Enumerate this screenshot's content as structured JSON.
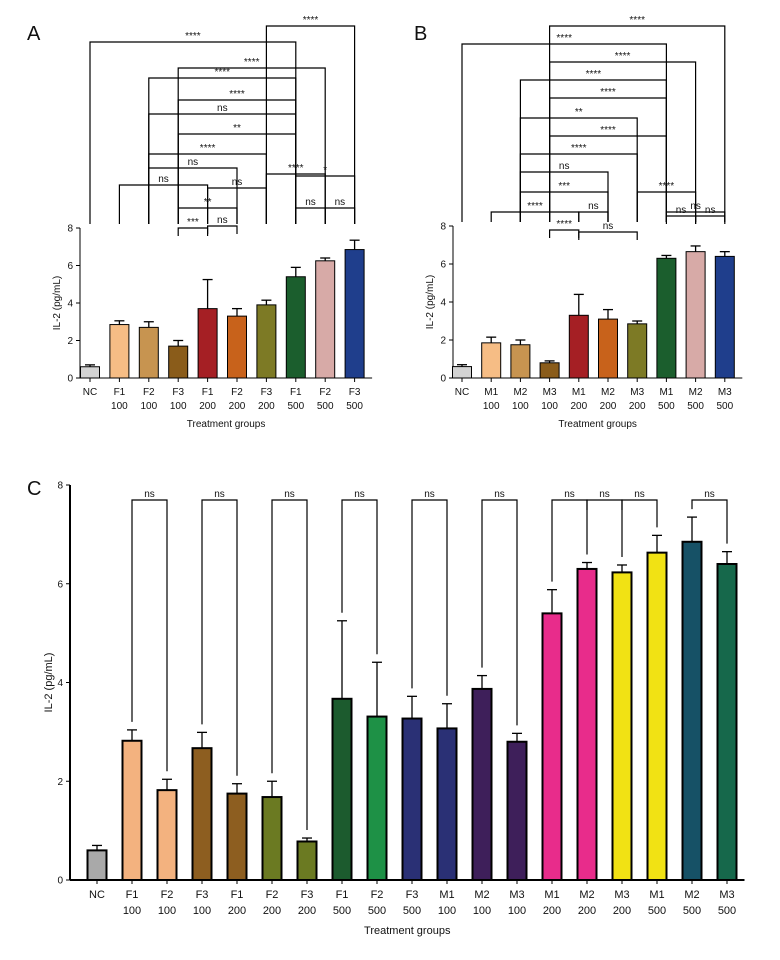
{
  "chart_data": [
    {
      "panel_label": "A",
      "type": "bar",
      "ylabel": "IL-2 (pg/mL)",
      "xlabel": "Treatment groups",
      "ylim": [
        0,
        8
      ],
      "yticks": [
        0,
        2,
        4,
        6,
        8
      ],
      "categories": [
        [
          "NC"
        ],
        [
          "F1",
          "100"
        ],
        [
          "F2",
          "100"
        ],
        [
          "F3",
          "100"
        ],
        [
          "F1",
          "200"
        ],
        [
          "F2",
          "200"
        ],
        [
          "F3",
          "200"
        ],
        [
          "F1",
          "500"
        ],
        [
          "F2",
          "500"
        ],
        [
          "F3",
          "500"
        ]
      ],
      "values": [
        0.6,
        2.85,
        2.7,
        1.7,
        3.7,
        3.3,
        3.9,
        5.4,
        6.25,
        6.85
      ],
      "errors": [
        0.1,
        0.2,
        0.3,
        0.3,
        1.55,
        0.4,
        0.25,
        0.5,
        0.15,
        0.5
      ],
      "colors": [
        "#d3d3d3",
        "#f6bd85",
        "#c79450",
        "#8a5c1a",
        "#a51f24",
        "#c8621b",
        "#7d7a25",
        "#1b5e2d",
        "#d7aaa7",
        "#1f3e8c"
      ],
      "comparisons": [
        {
          "from": 6,
          "to": 9,
          "label": "****"
        },
        {
          "from": 0,
          "to": 7,
          "label": "****"
        },
        {
          "from": 3,
          "to": 8,
          "label": "****"
        },
        {
          "from": 2,
          "to": 7,
          "label": "****"
        },
        {
          "from": 3,
          "to": 7,
          "label": "****"
        },
        {
          "from": 2,
          "to": 7,
          "label": "ns"
        },
        {
          "from": 3,
          "to": 7,
          "label": "**"
        },
        {
          "from": 2,
          "to": 6,
          "label": "****"
        },
        {
          "from": 2,
          "to": 5,
          "label": "ns"
        },
        {
          "from": 6,
          "to": 8,
          "label": "****"
        },
        {
          "from": 1,
          "to": 4,
          "label": "ns"
        },
        {
          "from": 4,
          "to": 6,
          "label": "ns"
        },
        {
          "from": 7,
          "to": 9,
          "label": "*"
        },
        {
          "from": 3,
          "to": 5,
          "label": "**"
        },
        {
          "from": 3,
          "to": 4,
          "label": "***"
        },
        {
          "from": 4,
          "to": 5,
          "label": "ns"
        },
        {
          "from": 7,
          "to": 8,
          "label": "ns"
        },
        {
          "from": 8,
          "to": 9,
          "label": "ns"
        }
      ]
    },
    {
      "panel_label": "B",
      "type": "bar",
      "ylabel": "IL-2 (pg/mL)",
      "xlabel": "Treatment groups",
      "ylim": [
        0,
        8
      ],
      "yticks": [
        0,
        2,
        4,
        6,
        8
      ],
      "categories": [
        [
          "NC"
        ],
        [
          "M1",
          "100"
        ],
        [
          "M2",
          "100"
        ],
        [
          "M3",
          "100"
        ],
        [
          "M1",
          "200"
        ],
        [
          "M2",
          "200"
        ],
        [
          "M3",
          "200"
        ],
        [
          "M1",
          "500"
        ],
        [
          "M2",
          "500"
        ],
        [
          "M3",
          "500"
        ]
      ],
      "values": [
        0.6,
        1.85,
        1.75,
        0.8,
        3.3,
        3.1,
        2.85,
        6.3,
        6.65,
        6.4
      ],
      "errors": [
        0.1,
        0.3,
        0.25,
        0.1,
        1.1,
        0.5,
        0.15,
        0.15,
        0.3,
        0.25
      ],
      "colors": [
        "#d3d3d3",
        "#f6bd85",
        "#c79450",
        "#8a5c1a",
        "#a51f24",
        "#c8621b",
        "#7d7a25",
        "#1b5e2d",
        "#d7aaa7",
        "#1f3e8c"
      ],
      "comparisons": [
        {
          "from": 3,
          "to": 9,
          "label": "****"
        },
        {
          "from": 0,
          "to": 7,
          "label": "****"
        },
        {
          "from": 3,
          "to": 8,
          "label": "****"
        },
        {
          "from": 2,
          "to": 7,
          "label": "****"
        },
        {
          "from": 3,
          "to": 7,
          "label": "****"
        },
        {
          "from": 2,
          "to": 6,
          "label": "**"
        },
        {
          "from": 3,
          "to": 7,
          "label": "****"
        },
        {
          "from": 2,
          "to": 6,
          "label": "****"
        },
        {
          "from": 2,
          "to": 5,
          "label": "ns"
        },
        {
          "from": 2,
          "to": 5,
          "label": "***"
        },
        {
          "from": 6,
          "to": 8,
          "label": "****"
        },
        {
          "from": 1,
          "to": 4,
          "label": "****"
        },
        {
          "from": 4,
          "to": 5,
          "label": "ns"
        },
        {
          "from": 7,
          "to": 9,
          "label": "ns"
        },
        {
          "from": 3,
          "to": 4,
          "label": "****"
        },
        {
          "from": 4,
          "to": 6,
          "label": "ns"
        },
        {
          "from": 7,
          "to": 8,
          "label": "ns"
        },
        {
          "from": 8,
          "to": 9,
          "label": "ns"
        }
      ]
    },
    {
      "panel_label": "C",
      "type": "bar",
      "ylabel": "IL-2 (pg/mL)",
      "xlabel": "Treatment groups",
      "ylim": [
        0,
        8
      ],
      "yticks": [
        0,
        2,
        4,
        6,
        8
      ],
      "categories": [
        [
          "NC"
        ],
        [
          "F1",
          "100"
        ],
        [
          "F2",
          "100"
        ],
        [
          "F3",
          "100"
        ],
        [
          "F1",
          "200"
        ],
        [
          "F2",
          "200"
        ],
        [
          "F3",
          "200"
        ],
        [
          "F1",
          "500"
        ],
        [
          "F2",
          "500"
        ],
        [
          "F3",
          "500"
        ],
        [
          "M1",
          "100"
        ],
        [
          "M2",
          "100"
        ],
        [
          "M3",
          "100"
        ],
        [
          "M1",
          "200"
        ],
        [
          "M2",
          "200"
        ],
        [
          "M3",
          "200"
        ],
        [
          "M1",
          "500"
        ],
        [
          "M2",
          "500"
        ],
        [
          "M3",
          "500"
        ]
      ],
      "values": [
        0.6,
        2.82,
        1.82,
        2.67,
        1.75,
        1.68,
        0.78,
        3.67,
        3.31,
        3.27,
        3.07,
        3.87,
        2.8,
        5.4,
        6.3,
        6.23,
        6.63,
        6.85,
        6.4
      ],
      "errors": [
        0.1,
        0.22,
        0.22,
        0.32,
        0.2,
        0.32,
        0.07,
        1.58,
        1.1,
        0.45,
        0.5,
        0.27,
        0.17,
        0.48,
        0.13,
        0.15,
        0.35,
        0.5,
        0.25
      ],
      "colors": [
        "#a9a9a9",
        "#f3b27f",
        "#f3b27f",
        "#8d5e20",
        "#8d5e20",
        "#6b7a22",
        "#6b7a22",
        "#1c5b2e",
        "#1e9146",
        "#2a3075",
        "#2a3075",
        "#3e1f5a",
        "#3e1f5a",
        "#e82c8b",
        "#e82c8b",
        "#f1e214",
        "#f1e214",
        "#165166",
        "#16684b"
      ],
      "comparisons": [
        {
          "from": 14,
          "to": 15,
          "label": "ns"
        },
        {
          "from": 1,
          "to": 2,
          "label": "ns"
        },
        {
          "from": 3,
          "to": 4,
          "label": "ns"
        },
        {
          "from": 5,
          "to": 6,
          "label": "ns"
        },
        {
          "from": 7,
          "to": 8,
          "label": "ns"
        },
        {
          "from": 9,
          "to": 10,
          "label": "ns"
        },
        {
          "from": 11,
          "to": 12,
          "label": "ns"
        },
        {
          "from": 13,
          "to": 14,
          "label": "ns"
        },
        {
          "from": 15,
          "to": 16,
          "label": "ns"
        },
        {
          "from": 17,
          "to": 18,
          "label": "ns"
        }
      ]
    }
  ]
}
